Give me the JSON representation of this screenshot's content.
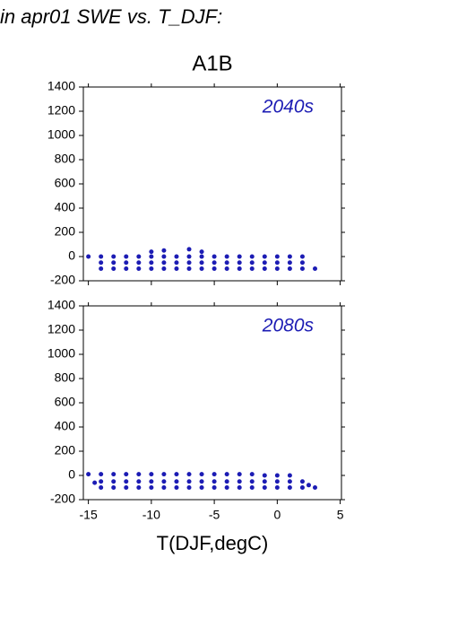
{
  "chart_data": [
    {
      "type": "scatter",
      "title": "in apr01 SWE vs. T_DJF:",
      "subtitle": "A1B",
      "panel_label": "2040s",
      "color": "#1c1cb4",
      "xlim": [
        -15.4,
        5.1
      ],
      "ylim": [
        -200,
        1400
      ],
      "xticks": [
        -15,
        -10,
        -5,
        0,
        5
      ],
      "yticks": [
        -200,
        0,
        200,
        400,
        600,
        800,
        1000,
        1200,
        1400
      ],
      "x": [
        -15,
        -14,
        -13,
        -12,
        -11,
        -10,
        -9,
        -8,
        -7,
        -6,
        -5,
        -4,
        -3,
        -2,
        -1,
        0,
        1,
        2,
        -14,
        -13,
        -12,
        -11,
        -10,
        -9,
        -8,
        -7,
        -6,
        -5,
        -4,
        -3,
        -2,
        -1,
        0,
        1,
        2,
        -14,
        -13,
        -12,
        -11,
        -10,
        -9,
        -8,
        -7,
        -6,
        -5,
        -4,
        -3,
        -2,
        -1,
        0,
        1,
        2,
        3,
        -10,
        -9,
        -7,
        -6
      ],
      "y": [
        0,
        0,
        0,
        0,
        0,
        0,
        0,
        0,
        0,
        0,
        0,
        0,
        0,
        0,
        0,
        0,
        0,
        0,
        -50,
        -50,
        -50,
        -50,
        -50,
        -50,
        -50,
        -50,
        -50,
        -50,
        -50,
        -50,
        -50,
        -50,
        -50,
        -50,
        -50,
        -100,
        -100,
        -100,
        -100,
        -100,
        -100,
        -100,
        -100,
        -100,
        -100,
        -100,
        -100,
        -100,
        -100,
        -100,
        -100,
        -100,
        -100,
        40,
        50,
        60,
        40
      ]
    },
    {
      "type": "scatter",
      "panel_label": "2080s",
      "x_label": "T(DJF,degC)",
      "color": "#1c1cb4",
      "xlim": [
        -15.4,
        5.1
      ],
      "ylim": [
        -200,
        1400
      ],
      "xticks": [
        -15,
        -10,
        -5,
        0,
        5
      ],
      "yticks": [
        -200,
        0,
        200,
        400,
        600,
        800,
        1000,
        1200,
        1400
      ],
      "x": [
        -15,
        -14,
        -13,
        -12,
        -11,
        -10,
        -9,
        -8,
        -7,
        -6,
        -5,
        -4,
        -3,
        -2,
        -1,
        0,
        1,
        -14,
        -13,
        -12,
        -11,
        -10,
        -9,
        -8,
        -7,
        -6,
        -5,
        -4,
        -3,
        -2,
        -1,
        0,
        1,
        2,
        -14,
        -13,
        -12,
        -11,
        -10,
        -9,
        -8,
        -7,
        -6,
        -5,
        -4,
        -3,
        -2,
        -1,
        0,
        1,
        2,
        3,
        -14.5,
        2.5
      ],
      "y": [
        10,
        10,
        10,
        10,
        10,
        10,
        10,
        10,
        10,
        10,
        10,
        10,
        10,
        10,
        0,
        0,
        0,
        -50,
        -50,
        -50,
        -50,
        -50,
        -50,
        -50,
        -50,
        -50,
        -50,
        -50,
        -50,
        -50,
        -50,
        -50,
        -50,
        -50,
        -100,
        -100,
        -100,
        -100,
        -100,
        -100,
        -100,
        -100,
        -100,
        -100,
        -100,
        -100,
        -100,
        -100,
        -100,
        -100,
        -100,
        -100,
        -60,
        -80
      ]
    }
  ]
}
